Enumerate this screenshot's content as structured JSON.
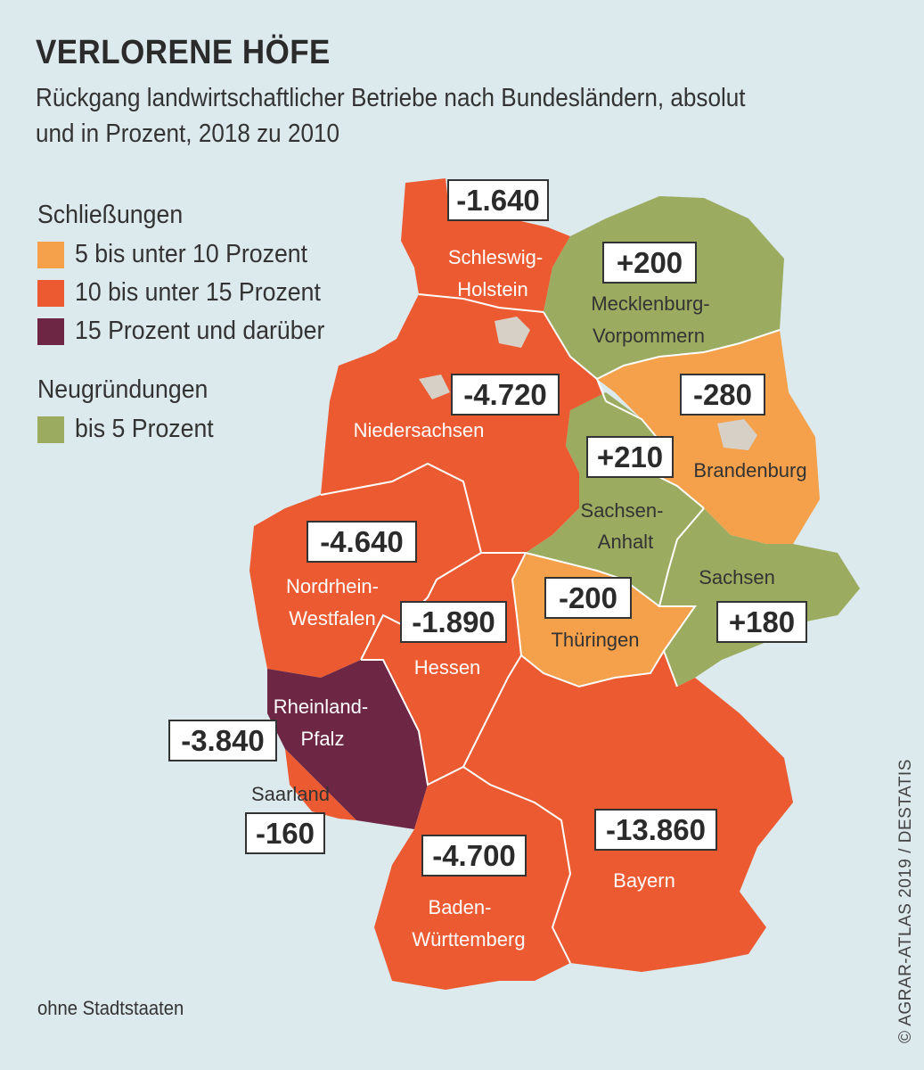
{
  "title": "VERLORENE HÖFE",
  "subtitle": "Rückgang landwirtschaftlicher Betriebe nach Bundesländern, absolut und in Prozent, 2018 zu 2010",
  "legend": {
    "closures_heading": "Schließungen",
    "closures": [
      {
        "label": "5 bis unter 10 Prozent",
        "color": "#f5a04a"
      },
      {
        "label": "10 bis unter 15 Prozent",
        "color": "#ec5a32"
      },
      {
        "label": "15 Prozent und darüber",
        "color": "#6e2645"
      }
    ],
    "openings_heading": "Neugründungen",
    "openings": [
      {
        "label": "bis 5 Prozent",
        "color": "#9bac60"
      }
    ]
  },
  "colors": {
    "background": "#dce9ed",
    "city_states": "#d7d0c7"
  },
  "states": {
    "schleswig_holstein": {
      "name_line1": "Schleswig-",
      "name_line2": "Holstein",
      "value": "-1.640"
    },
    "mecklenburg_vorpommern": {
      "name_line1": "Mecklenburg-",
      "name_line2": "Vorpommern",
      "value": "+200"
    },
    "niedersachsen": {
      "name_line1": "Niedersachsen",
      "value": "-4.720"
    },
    "brandenburg": {
      "name_line1": "Brandenburg",
      "value": "-280"
    },
    "sachsen_anhalt": {
      "name_line1": "Sachsen-",
      "name_line2": "Anhalt",
      "value": "+210"
    },
    "nordrhein_westfalen": {
      "name_line1": "Nordrhein-",
      "name_line2": "Westfalen",
      "value": "-4.640"
    },
    "sachsen": {
      "name_line1": "Sachsen",
      "value": "+180"
    },
    "thueringen": {
      "name_line1": "Thüringen",
      "value": "-200"
    },
    "hessen": {
      "name_line1": "Hessen",
      "value": "-1.890"
    },
    "rheinland_pfalz": {
      "name_line1": "Rheinland-",
      "name_line2": "Pfalz",
      "value": "-3.840"
    },
    "saarland": {
      "name_line1": "Saarland",
      "value": "-160"
    },
    "baden_wuerttemberg": {
      "name_line1": "Baden-",
      "name_line2": "Württemberg",
      "value": "-4.700"
    },
    "bayern": {
      "name_line1": "Bayern",
      "value": "-13.860"
    }
  },
  "footnote": "ohne Stadtstaaten",
  "credit": "© AGRAR-ATLAS 2019 / DESTATIS"
}
